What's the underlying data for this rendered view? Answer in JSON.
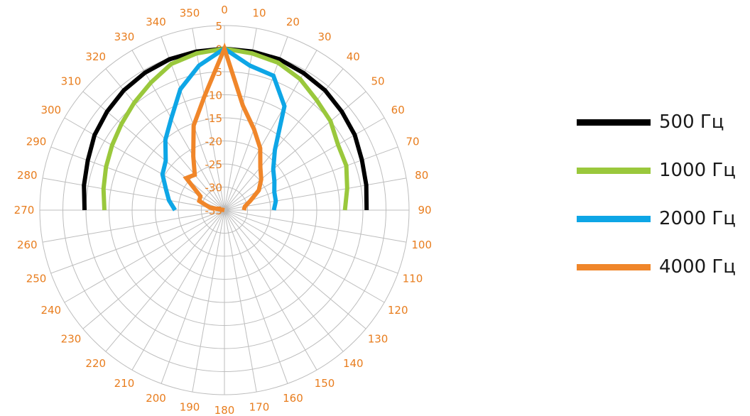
{
  "chart_data": {
    "type": "polar-line",
    "title": "",
    "angle_ticks": [
      "0",
      "10",
      "20",
      "30",
      "40",
      "50",
      "60",
      "70",
      "80",
      "90",
      "100",
      "110",
      "120",
      "130",
      "140",
      "150",
      "160",
      "170",
      "180",
      "190",
      "200",
      "210",
      "220",
      "230",
      "240",
      "250",
      "260",
      "270",
      "280",
      "290",
      "300",
      "310",
      "320",
      "330",
      "340",
      "350"
    ],
    "radial_ticks": [
      "5",
      "0",
      "-5",
      "-10",
      "-15",
      "-20",
      "-25",
      "-30",
      "-35"
    ],
    "radial_range": [
      -35,
      5
    ],
    "label_color": "#e87d1e",
    "grid": true,
    "legend_position": "right",
    "angles": [
      270,
      280,
      290,
      300,
      310,
      320,
      330,
      340,
      350,
      0,
      10,
      20,
      30,
      40,
      50,
      60,
      70,
      80,
      90
    ],
    "series": [
      {
        "name": "500 Гц",
        "color": "#000000",
        "values": [
          -4.7,
          -4.1,
          -3.5,
          -2.5,
          -1.8,
          -1.1,
          -0.6,
          -0.2,
          -0.1,
          0,
          -0.1,
          -0.2,
          -0.7,
          -1.1,
          -1.8,
          -2.4,
          -3.3,
          -3.8,
          -4.2
        ]
      },
      {
        "name": "1000 Гц",
        "color": "#9ac83c",
        "values": [
          -9.0,
          -8.4,
          -7.7,
          -6.9,
          -5.9,
          -4.6,
          -3.1,
          -1.3,
          -0.5,
          0,
          -0.5,
          -1.0,
          -2.2,
          -3.9,
          -5.0,
          -6.6,
          -6.9,
          -8.0,
          -8.9
        ]
      },
      {
        "name": "2000 Гц",
        "color": "#0ea6e6",
        "values": [
          -24.3,
          -22.8,
          -21.5,
          -19.5,
          -18.4,
          -15.1,
          -12.0,
          -7.1,
          -3.2,
          0,
          -3.2,
          -4.0,
          -9.0,
          -18.0,
          -21.2,
          -22.5,
          -23.5,
          -23.7,
          -24.3
        ]
      },
      {
        "name": "4000 Гц",
        "color": "#f0862a",
        "values": [
          -35.0,
          -31.8,
          -29.2,
          -29.0,
          -24.2,
          -25.0,
          -21.5,
          -15.5,
          -10.0,
          0,
          -12.0,
          -16.3,
          -19.5,
          -22.9,
          -24.6,
          -26.4,
          -29.0,
          -30.5,
          -30.8
        ]
      }
    ]
  }
}
